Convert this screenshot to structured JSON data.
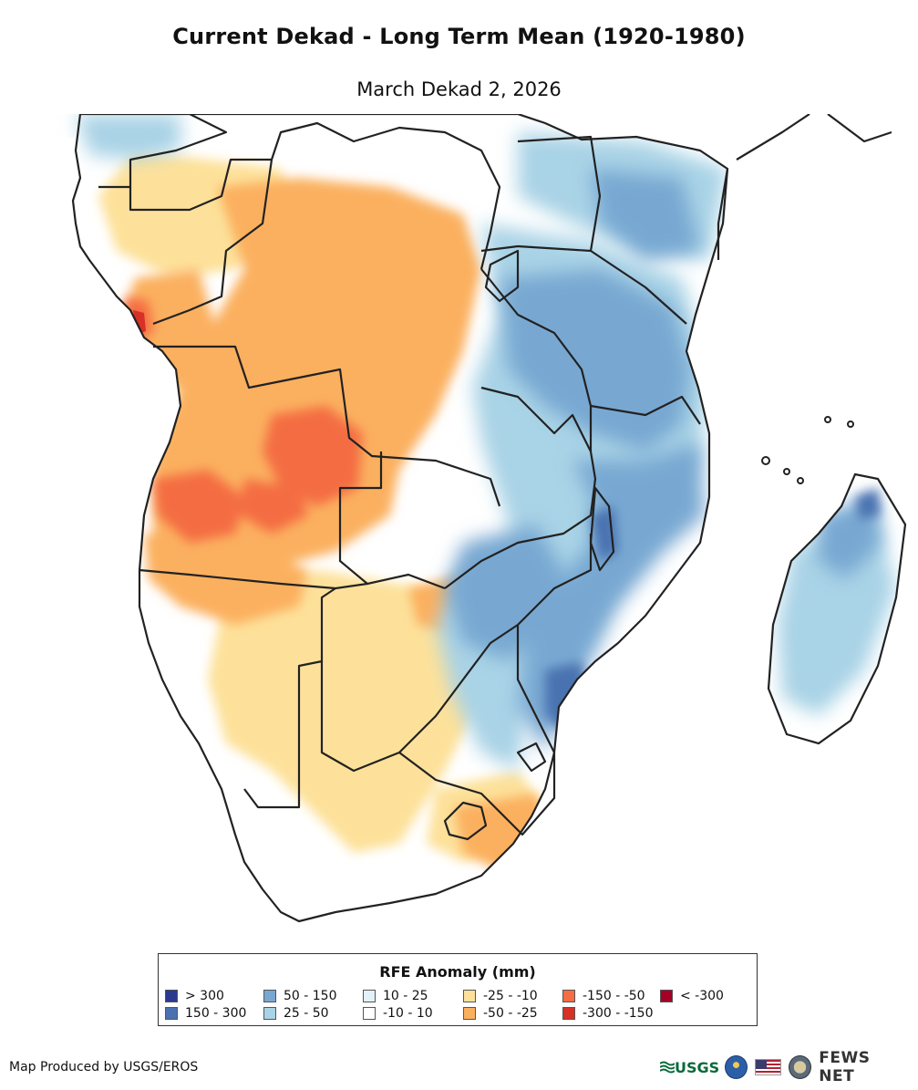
{
  "map": {
    "title": "Current Dekad - Long Term Mean (1920-1980)",
    "subtitle": "March Dekad 2, 2026"
  },
  "legend": {
    "title": "RFE Anomaly (mm)",
    "items": [
      {
        "label": "> 300",
        "color": "#2b3a8f"
      },
      {
        "label": "150 - 300",
        "color": "#4a72b0"
      },
      {
        "label": "50 - 150",
        "color": "#78a8d2"
      },
      {
        "label": "25 - 50",
        "color": "#a9d3e6"
      },
      {
        "label": "10 - 25",
        "color": "#e3f1f8"
      },
      {
        "label": "-10 - 10",
        "color": "#ffffff"
      },
      {
        "label": "-25 - -10",
        "color": "#fde19a"
      },
      {
        "label": "-50 - -25",
        "color": "#fbb05e"
      },
      {
        "label": "-150 - -50",
        "color": "#f46d43"
      },
      {
        "label": "-300 - -150",
        "color": "#d73027"
      },
      {
        "label": "< -300",
        "color": "#a50026"
      }
    ]
  },
  "footer": {
    "credit": "Map Produced by USGS/EROS",
    "logos": {
      "usgs": "USGS",
      "fews": "FEWS NET"
    }
  }
}
